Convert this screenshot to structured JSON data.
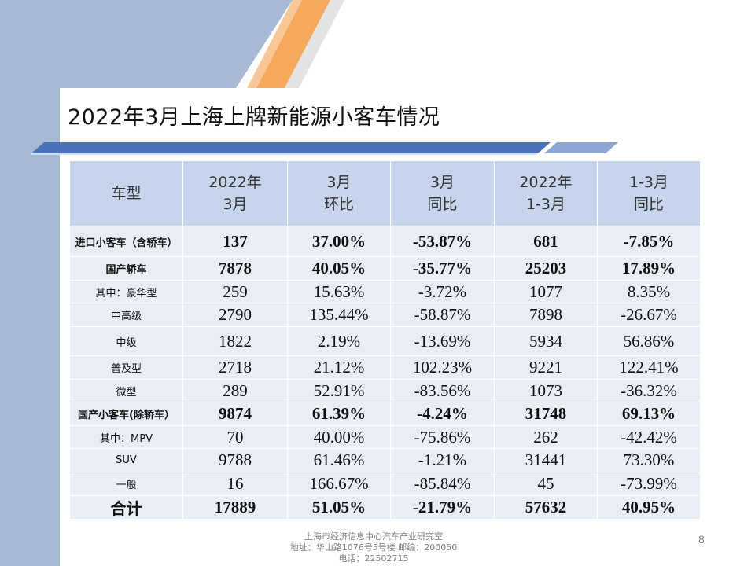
{
  "slide": {
    "title": "2022年3月上海上牌新能源小客车情况",
    "page_number": "8"
  },
  "colors": {
    "left_band": "#a8b9d6",
    "header_fill": "#c6d5ec",
    "row_fill": "#e9eef6",
    "accent_orange": "#f5a95a",
    "accent_blue": "#4a72b8"
  },
  "table": {
    "headers": [
      {
        "line1": "车型",
        "line2": ""
      },
      {
        "line1": "2022年",
        "line2": "3月"
      },
      {
        "line1": "3月",
        "line2": "环比"
      },
      {
        "line1": "3月",
        "line2": "同比"
      },
      {
        "line1": "2022年",
        "line2": "1-3月"
      },
      {
        "line1": "1-3月",
        "line2": "同比"
      }
    ],
    "rows": [
      {
        "name": "进口小客车（含轿车）",
        "values": [
          "137",
          "37.00%",
          "-53.87%",
          "681",
          "-7.85%"
        ]
      },
      {
        "name": "国产轿车",
        "values": [
          "7878",
          "40.05%",
          "-35.77%",
          "25203",
          "17.89%"
        ]
      },
      {
        "name": "其中：豪华型",
        "values": [
          "259",
          "15.63%",
          "-3.72%",
          "1077",
          "8.35%"
        ]
      },
      {
        "name": "中高级",
        "values": [
          "2790",
          "135.44%",
          "-58.87%",
          "7898",
          "-26.67%"
        ]
      },
      {
        "name": "中级",
        "values": [
          "1822",
          "2.19%",
          "-13.69%",
          "5934",
          "56.86%"
        ]
      },
      {
        "name": "普及型",
        "values": [
          "2718",
          "21.12%",
          "102.23%",
          "9221",
          "122.41%"
        ]
      },
      {
        "name": "微型",
        "values": [
          "289",
          "52.91%",
          "-83.56%",
          "1073",
          "-36.32%"
        ]
      },
      {
        "name": "国产小客车(除轿车）",
        "values": [
          "9874",
          "61.39%",
          "-4.24%",
          "31748",
          "69.13%"
        ]
      },
      {
        "name": "其中：MPV",
        "values": [
          "70",
          "40.00%",
          "-75.86%",
          "262",
          "-42.42%"
        ]
      },
      {
        "name": "SUV",
        "values": [
          "9788",
          "61.46%",
          "-1.21%",
          "31441",
          "73.30%"
        ]
      },
      {
        "name": "一般",
        "values": [
          "16",
          "166.67%",
          "-85.84%",
          "45",
          "-73.99%"
        ]
      },
      {
        "name": "合计",
        "values": [
          "17889",
          "51.05%",
          "-21.79%",
          "57632",
          "40.95%"
        ]
      }
    ]
  },
  "footer": {
    "line1": "上海市经济信息中心汽车产业研究室",
    "line2": "地址：华山路1076号5号楼    邮编：200050",
    "line3": "电话：22502715"
  }
}
